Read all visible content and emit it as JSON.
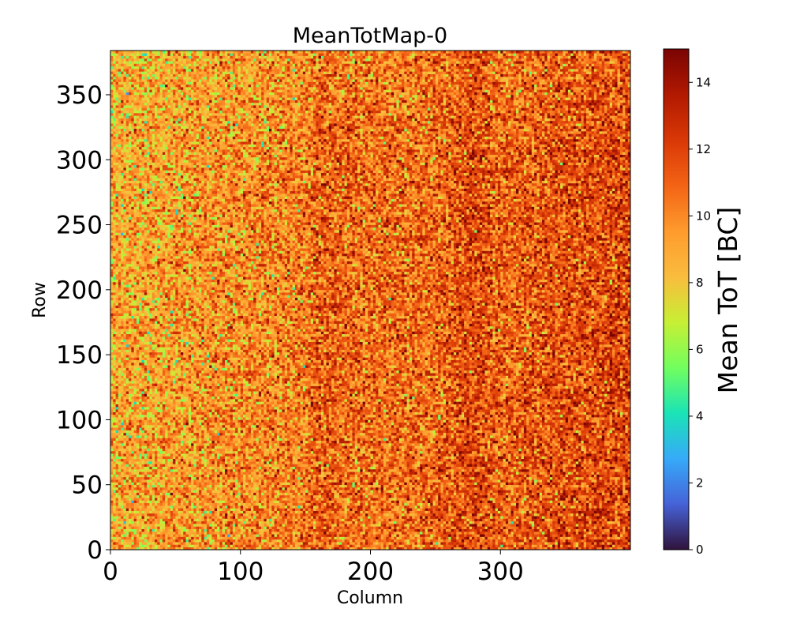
{
  "chart_data": {
    "type": "heatmap",
    "title": "MeanTotMap-0",
    "xlabel": "Column",
    "ylabel": "Row",
    "xlim": [
      0,
      400
    ],
    "ylim": [
      0,
      384
    ],
    "x_ticks": [
      0,
      100,
      200,
      300
    ],
    "y_ticks": [
      0,
      50,
      100,
      150,
      200,
      250,
      300,
      350
    ],
    "grid": false,
    "colormap": "turbo",
    "colorbar": {
      "label": "Mean ToT [BC]",
      "range": [
        0,
        15
      ],
      "ticks": [
        0,
        2,
        4,
        6,
        8,
        10,
        12,
        14
      ]
    },
    "value_profile": {
      "description_of_data": "Per-pixel mean ToT; noisy values mostly 8-14 BC, lower (about 8-9) near column 0-150, higher (about 11-13) toward columns 300-400, with darker vertical bands near columns 160 and 280",
      "column_breakpoints": [
        0,
        50,
        100,
        150,
        160,
        200,
        250,
        280,
        300,
        350,
        400
      ],
      "mean_tot_at_breakpoints": [
        8.8,
        9.3,
        9.8,
        10.1,
        11.2,
        10.6,
        10.8,
        11.8,
        11.0,
        11.5,
        12.0
      ],
      "noise_sd": 1.8,
      "top_rows_lower_by": 0.6
    },
    "colors": {
      "turbo_stops": [
        "#30123b",
        "#4662d7",
        "#36aaf9",
        "#1ae4b6",
        "#72fe5e",
        "#c7ef34",
        "#fabc3d",
        "#fe9b2d",
        "#f36315",
        "#d93806",
        "#b11901",
        "#7a0403"
      ]
    }
  }
}
